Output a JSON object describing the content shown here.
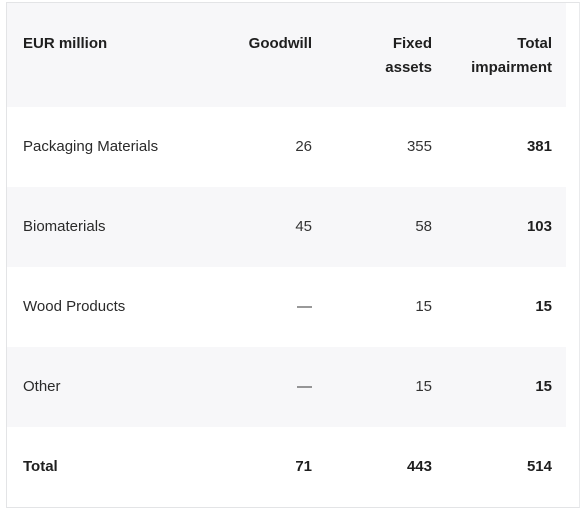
{
  "table": {
    "headers": {
      "col0": "EUR million",
      "col1": "Goodwill",
      "col2_line1": "Fixed",
      "col2_line2": "assets",
      "col3_line1": "Total",
      "col3_line2": "impairment"
    },
    "rows": [
      {
        "label": "Packaging Materials",
        "goodwill": "26",
        "fixed_assets": "355",
        "total": "381"
      },
      {
        "label": "Biomaterials",
        "goodwill": "45",
        "fixed_assets": "58",
        "total": "103"
      },
      {
        "label": "Wood Products",
        "goodwill": "—",
        "fixed_assets": "15",
        "total": "15"
      },
      {
        "label": "Other",
        "goodwill": "—",
        "fixed_assets": "15",
        "total": "15"
      }
    ],
    "total_row": {
      "label": "Total",
      "goodwill": "71",
      "fixed_assets": "443",
      "total": "514"
    }
  }
}
